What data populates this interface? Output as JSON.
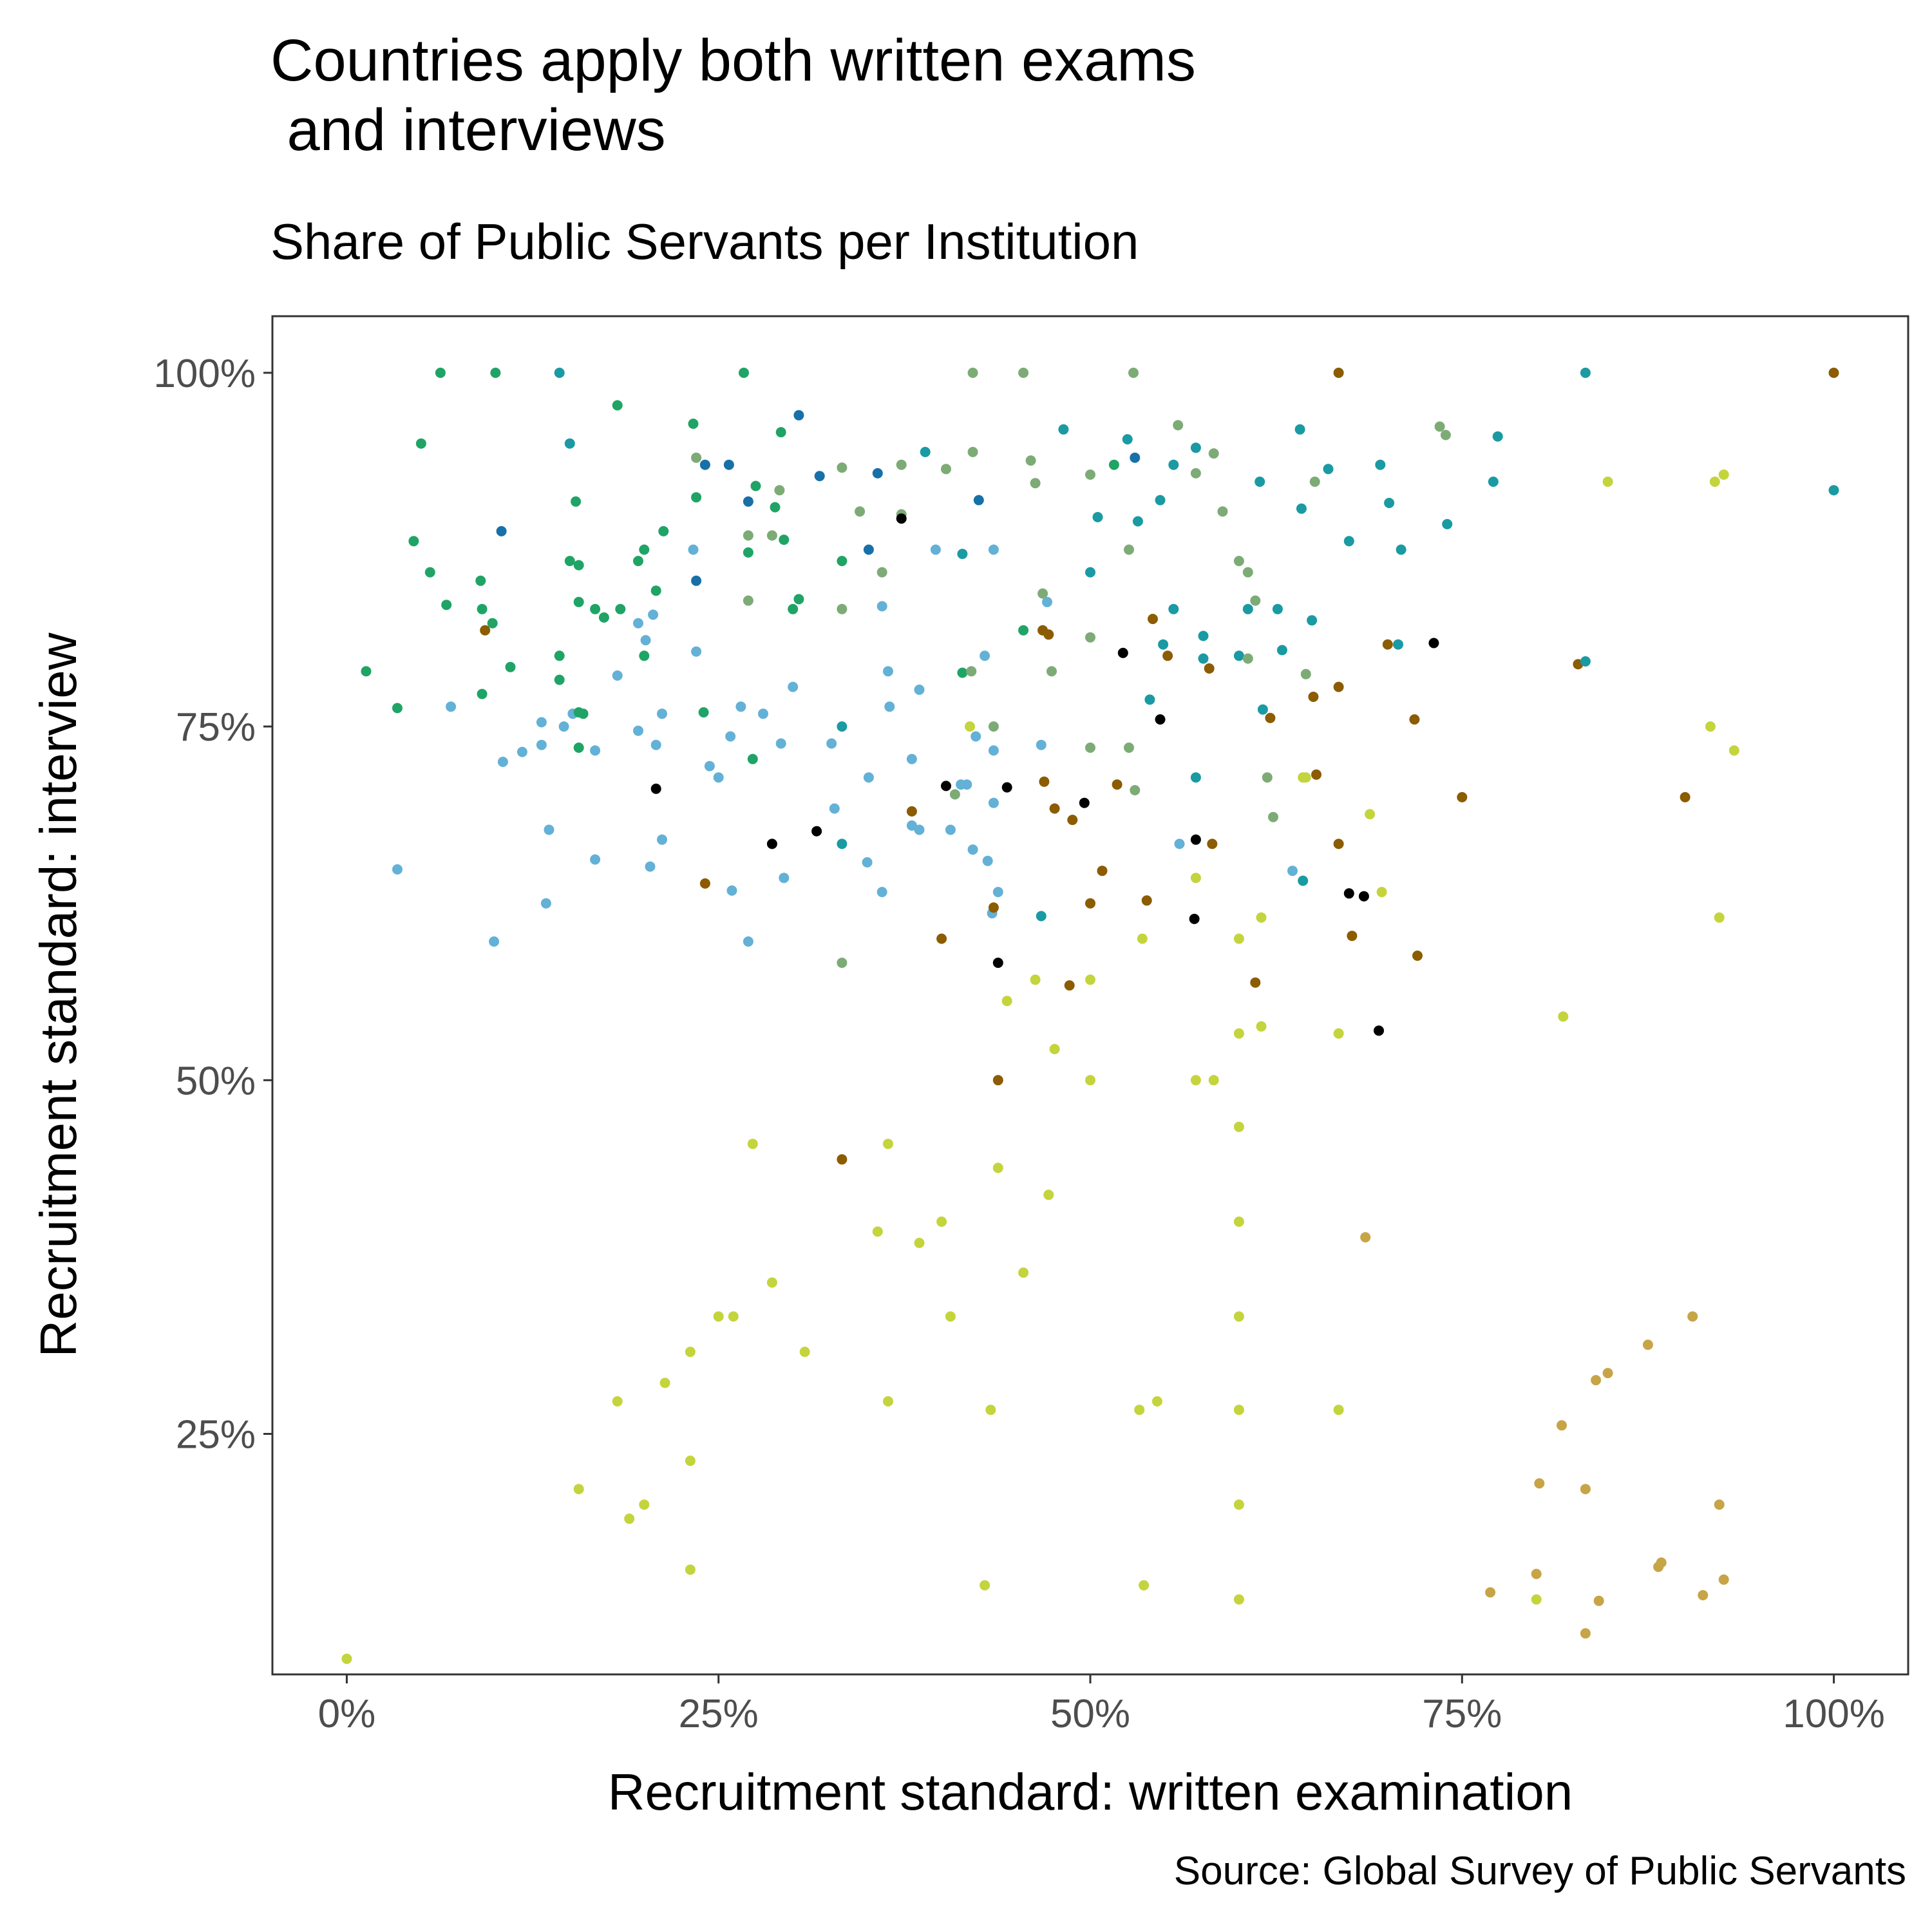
{
  "chart_data": {
    "type": "scatter",
    "title": "Countries apply both written exams\n and interviews",
    "subtitle": "Share of Public Servants per Institution",
    "xlabel": "Recruitment standard: written examination",
    "ylabel": "Recruitment standard: interview",
    "caption": "Source: Global Survey of Public Servants",
    "xlim": [
      -5,
      105
    ],
    "ylim": [
      8,
      104
    ],
    "x_ticks": [
      0,
      25,
      50,
      75,
      100
    ],
    "x_tick_labels": [
      "0%",
      "25%",
      "50%",
      "75%",
      "100%"
    ],
    "y_ticks": [
      25,
      50,
      75,
      100
    ],
    "y_tick_labels": [
      "25%",
      "50%",
      "75%",
      "100%"
    ],
    "grid": false,
    "legend": "none",
    "colors": [
      "#1fa466",
      "#63b1d6",
      "#1a9aa3",
      "#7dab76",
      "#8b5c00",
      "#000000",
      "#c4d43c",
      "#c7a446",
      "#1870a8"
    ],
    "points": [
      [
        6.3,
        100,
        0
      ],
      [
        10,
        100,
        0
      ],
      [
        14.3,
        100,
        2
      ],
      [
        26.7,
        100,
        0
      ],
      [
        42.1,
        100,
        3
      ],
      [
        45.5,
        100,
        3
      ],
      [
        52.9,
        100,
        3
      ],
      [
        66.7,
        100,
        4
      ],
      [
        83.3,
        100,
        2
      ],
      [
        100,
        100,
        4
      ],
      [
        18.2,
        97.7,
        0
      ],
      [
        30.4,
        97,
        8
      ],
      [
        5,
        95,
        0
      ],
      [
        15,
        95,
        2
      ],
      [
        23.3,
        96.4,
        0
      ],
      [
        29.2,
        95.8,
        0
      ],
      [
        48.2,
        96,
        2
      ],
      [
        52.5,
        95.3,
        2
      ],
      [
        55.9,
        96.3,
        3
      ],
      [
        57.1,
        94.7,
        2
      ],
      [
        64.1,
        96,
        2
      ],
      [
        73.5,
        96.2,
        3
      ],
      [
        73.9,
        95.6,
        3
      ],
      [
        77.4,
        95.5,
        2
      ],
      [
        23.5,
        94,
        3
      ],
      [
        24.1,
        93.5,
        8
      ],
      [
        25.7,
        93.5,
        8
      ],
      [
        31.8,
        92.7,
        8
      ],
      [
        33.3,
        93.3,
        3
      ],
      [
        35.7,
        92.9,
        8
      ],
      [
        37.3,
        93.5,
        3
      ],
      [
        38.9,
        94.4,
        2
      ],
      [
        40.3,
        93.2,
        3
      ],
      [
        42.1,
        94.4,
        3
      ],
      [
        46,
        93.8,
        3
      ],
      [
        46.3,
        92.2,
        3
      ],
      [
        50,
        92.8,
        3
      ],
      [
        51.6,
        93.5,
        0
      ],
      [
        53,
        94,
        8
      ],
      [
        55.6,
        93.5,
        2
      ],
      [
        57.1,
        92.9,
        3
      ],
      [
        58.3,
        94.3,
        3
      ],
      [
        61.4,
        92.3,
        2
      ],
      [
        65.1,
        92.3,
        3
      ],
      [
        66,
        93.2,
        2
      ],
      [
        69.5,
        93.5,
        2
      ],
      [
        77.1,
        92.3,
        2
      ],
      [
        84.8,
        92.3,
        6
      ],
      [
        92,
        92.3,
        6
      ],
      [
        92.6,
        92.8,
        6
      ],
      [
        100,
        91.7,
        2
      ],
      [
        15.4,
        90.9,
        0
      ],
      [
        23.5,
        91.2,
        0
      ],
      [
        27,
        90.9,
        8
      ],
      [
        27.5,
        92,
        0
      ],
      [
        29.1,
        91.7,
        3
      ],
      [
        28.8,
        90.5,
        0
      ],
      [
        34.5,
        90.2,
        3
      ],
      [
        37.3,
        90,
        3
      ],
      [
        42.5,
        91,
        8
      ],
      [
        50.5,
        89.8,
        2
      ],
      [
        53.2,
        89.5,
        2
      ],
      [
        54.7,
        91,
        2
      ],
      [
        58.9,
        90.2,
        3
      ],
      [
        64.2,
        90.4,
        2
      ],
      [
        70.1,
        90.8,
        2
      ],
      [
        74,
        89.3,
        2
      ],
      [
        4.5,
        88.1,
        0
      ],
      [
        10.4,
        88.8,
        8
      ],
      [
        21.3,
        88.8,
        0
      ],
      [
        27,
        88.5,
        3
      ],
      [
        28.6,
        88.5,
        3
      ],
      [
        29.4,
        88.2,
        0
      ],
      [
        37.3,
        89.7,
        5
      ],
      [
        5.6,
        85.9,
        0
      ],
      [
        9,
        85.3,
        0
      ],
      [
        15,
        86.7,
        0
      ],
      [
        15.6,
        86.4,
        0
      ],
      [
        19.6,
        86.7,
        0
      ],
      [
        20,
        87.5,
        0
      ],
      [
        23.3,
        87.5,
        1
      ],
      [
        27,
        87.3,
        0
      ],
      [
        33.3,
        86.7,
        0
      ],
      [
        35.1,
        87.5,
        8
      ],
      [
        36,
        85.9,
        3
      ],
      [
        39.6,
        87.5,
        1
      ],
      [
        41.4,
        87.2,
        2
      ],
      [
        43.5,
        87.5,
        1
      ],
      [
        50,
        85.9,
        2
      ],
      [
        52.6,
        87.5,
        3
      ],
      [
        60,
        86.7,
        3
      ],
      [
        60.6,
        85.9,
        3
      ],
      [
        67.4,
        88.1,
        2
      ],
      [
        70.9,
        87.5,
        2
      ],
      [
        6.7,
        83.6,
        0
      ],
      [
        9.1,
        83.3,
        0
      ],
      [
        9.8,
        82.3,
        0
      ],
      [
        9.3,
        81.8,
        4
      ],
      [
        15.6,
        83.8,
        0
      ],
      [
        16.7,
        83.3,
        0
      ],
      [
        17.3,
        82.7,
        0
      ],
      [
        18.4,
        83.3,
        0
      ],
      [
        19.6,
        82.3,
        1
      ],
      [
        20.1,
        81.1,
        1
      ],
      [
        20.6,
        82.9,
        1
      ],
      [
        20.8,
        84.6,
        0
      ],
      [
        23.5,
        85.3,
        8
      ],
      [
        27,
        83.9,
        3
      ],
      [
        30,
        83.3,
        0
      ],
      [
        30.4,
        84,
        0
      ],
      [
        33.3,
        83.3,
        3
      ],
      [
        36,
        83.5,
        1
      ],
      [
        45.5,
        81.8,
        0
      ],
      [
        46.8,
        84.4,
        3
      ],
      [
        46.8,
        81.8,
        4
      ],
      [
        47.1,
        83.8,
        1
      ],
      [
        47.2,
        81.5,
        4
      ],
      [
        50,
        81.3,
        3
      ],
      [
        54.2,
        82.6,
        4
      ],
      [
        55.6,
        83.3,
        2
      ],
      [
        60.6,
        83.3,
        2
      ],
      [
        61.1,
        83.9,
        3
      ],
      [
        62.6,
        83.3,
        2
      ],
      [
        64.9,
        82.5,
        2
      ],
      [
        1.3,
        78.9,
        0
      ],
      [
        9.1,
        77.3,
        0
      ],
      [
        11,
        79.2,
        0
      ],
      [
        14.3,
        80,
        0
      ],
      [
        14.3,
        78.3,
        0
      ],
      [
        18.2,
        78.6,
        1
      ],
      [
        20,
        80,
        0
      ],
      [
        23.5,
        80.3,
        1
      ],
      [
        30,
        77.8,
        1
      ],
      [
        36.4,
        78.9,
        1
      ],
      [
        38.5,
        77.6,
        1
      ],
      [
        41.4,
        78.8,
        0
      ],
      [
        42,
        78.9,
        3
      ],
      [
        42.9,
        80,
        1
      ],
      [
        47.4,
        78.9,
        3
      ],
      [
        52.2,
        80.2,
        5
      ],
      [
        54.9,
        80.8,
        2
      ],
      [
        55.2,
        80,
        4
      ],
      [
        57.6,
        79.8,
        2
      ],
      [
        57.6,
        81.4,
        2
      ],
      [
        58,
        79.1,
        4
      ],
      [
        60,
        80,
        2
      ],
      [
        60.6,
        79.8,
        3
      ],
      [
        62.9,
        80.4,
        2
      ],
      [
        64.5,
        78.7,
        3
      ],
      [
        66.7,
        77.8,
        4
      ],
      [
        70,
        80.8,
        4
      ],
      [
        70.7,
        80.8,
        2
      ],
      [
        73.1,
        80.9,
        5
      ],
      [
        82.8,
        79.4,
        4
      ],
      [
        83.3,
        79.6,
        2
      ],
      [
        3.4,
        76.3,
        0
      ],
      [
        7,
        76.4,
        1
      ],
      [
        13.1,
        75.3,
        1
      ],
      [
        13.1,
        73.7,
        1
      ],
      [
        14.6,
        75,
        1
      ],
      [
        15.2,
        75.9,
        1
      ],
      [
        15.6,
        76,
        0
      ],
      [
        15.9,
        75.9,
        0
      ],
      [
        15.6,
        73.5,
        0
      ],
      [
        16.7,
        73.3,
        1
      ],
      [
        19.6,
        74.7,
        1
      ],
      [
        20.8,
        73.7,
        1
      ],
      [
        21.2,
        75.9,
        1
      ],
      [
        24,
        76,
        0
      ],
      [
        24.4,
        72.2,
        1
      ],
      [
        25,
        71.4,
        1
      ],
      [
        25.8,
        74.3,
        1
      ],
      [
        26.5,
        76.4,
        1
      ],
      [
        27.3,
        72.7,
        0
      ],
      [
        28,
        75.9,
        1
      ],
      [
        29.2,
        73.8,
        1
      ],
      [
        32.6,
        73.8,
        1
      ],
      [
        33.3,
        75,
        2
      ],
      [
        35.1,
        71.4,
        1
      ],
      [
        36.5,
        76.4,
        1
      ],
      [
        38,
        72.7,
        1
      ],
      [
        40.9,
        70.2,
        3
      ],
      [
        41.3,
        70.9,
        1
      ],
      [
        41.7,
        70.9,
        1
      ],
      [
        41.9,
        75,
        6
      ],
      [
        42.3,
        74.3,
        1
      ],
      [
        43.5,
        73.3,
        1
      ],
      [
        43.5,
        75,
        3
      ],
      [
        44.4,
        70.7,
        5
      ],
      [
        46.7,
        73.7,
        1
      ],
      [
        46.9,
        71.1,
        4
      ],
      [
        50,
        73.5,
        3
      ],
      [
        51.8,
        70.9,
        4
      ],
      [
        52.6,
        73.5,
        3
      ],
      [
        53,
        70.5,
        3
      ],
      [
        54,
        76.9,
        2
      ],
      [
        54.7,
        75.5,
        5
      ],
      [
        57.1,
        71.4,
        2
      ],
      [
        61.6,
        76.2,
        2
      ],
      [
        62.1,
        75.6,
        4
      ],
      [
        61.9,
        71.4,
        3
      ],
      [
        64.5,
        71.4,
        6
      ],
      [
        65.2,
        71.6,
        4
      ],
      [
        65,
        77.1,
        4
      ],
      [
        71.8,
        75.5,
        4
      ],
      [
        75,
        70,
        4
      ],
      [
        90,
        70,
        4
      ],
      [
        91.7,
        75,
        6
      ],
      [
        93.3,
        73.3,
        6
      ],
      [
        3.4,
        64.9,
        1
      ],
      [
        9.9,
        59.8,
        1
      ],
      [
        10.5,
        72.5,
        1
      ],
      [
        11.8,
        73.2,
        1
      ],
      [
        13.6,
        67.7,
        1
      ],
      [
        13.4,
        62.5,
        1
      ],
      [
        16.7,
        65.6,
        1
      ],
      [
        20.4,
        65.1,
        1
      ],
      [
        20.8,
        70.6,
        5
      ],
      [
        21.2,
        67,
        1
      ],
      [
        24.1,
        63.9,
        4
      ],
      [
        25.9,
        63.4,
        1
      ],
      [
        27,
        59.8,
        1
      ],
      [
        28.6,
        66.7,
        5
      ],
      [
        29.4,
        64.3,
        1
      ],
      [
        31.6,
        67.6,
        5
      ],
      [
        32.8,
        69.2,
        1
      ],
      [
        33.3,
        66.7,
        2
      ],
      [
        33.3,
        58.3,
        3
      ],
      [
        35,
        65.4,
        1
      ],
      [
        36,
        63.3,
        1
      ],
      [
        38,
        68,
        1
      ],
      [
        38,
        69,
        4
      ],
      [
        38.5,
        67.7,
        1
      ],
      [
        40,
        60,
        4
      ],
      [
        40.3,
        70.8,
        5
      ],
      [
        40.6,
        67.7,
        1
      ],
      [
        42.1,
        66.3,
        1
      ],
      [
        43.1,
        65.5,
        1
      ],
      [
        43.4,
        61.8,
        1
      ],
      [
        43.5,
        62.2,
        4
      ],
      [
        43.5,
        69.6,
        1
      ],
      [
        43.8,
        63.3,
        1
      ],
      [
        43.8,
        58.3,
        5
      ],
      [
        46.7,
        61.6,
        2
      ],
      [
        47.6,
        69.2,
        4
      ],
      [
        48.6,
        56.7,
        4
      ],
      [
        48.8,
        68.4,
        4
      ],
      [
        49.6,
        69.6,
        5
      ],
      [
        50,
        62.5,
        4
      ],
      [
        50.8,
        64.8,
        4
      ],
      [
        53.8,
        62.7,
        4
      ],
      [
        56,
        66.7,
        1
      ],
      [
        57.1,
        67,
        5
      ],
      [
        57,
        61.4,
        5
      ],
      [
        58.2,
        66.7,
        4
      ],
      [
        62.3,
        68.6,
        3
      ],
      [
        63.6,
        64.8,
        1
      ],
      [
        64.3,
        64.1,
        2
      ],
      [
        66.7,
        66.7,
        4
      ],
      [
        67.4,
        63.2,
        5
      ],
      [
        67.6,
        60.2,
        4
      ],
      [
        68.4,
        63,
        5
      ],
      [
        69.6,
        63.3,
        6
      ],
      [
        72,
        58.8,
        4
      ],
      [
        61.1,
        56.9,
        4
      ],
      [
        69.4,
        53.5,
        5
      ],
      [
        92.3,
        61.5,
        6
      ],
      [
        27.3,
        45.5,
        6
      ],
      [
        33.3,
        44.4,
        4
      ],
      [
        36.4,
        45.5,
        6
      ],
      [
        43.8,
        50,
        4
      ],
      [
        43.8,
        43.8,
        6
      ],
      [
        44.4,
        55.6,
        6
      ],
      [
        46.3,
        57.1,
        6
      ],
      [
        47.6,
        52.2,
        6
      ],
      [
        47.2,
        41.9,
        6
      ],
      [
        50,
        50,
        6
      ],
      [
        50,
        57.1,
        6
      ],
      [
        53.5,
        60,
        6
      ],
      [
        57.1,
        64.3,
        6
      ],
      [
        57.1,
        50,
        6
      ],
      [
        58.3,
        50,
        6
      ],
      [
        60,
        60,
        6
      ],
      [
        60,
        53.3,
        6
      ],
      [
        60,
        46.7,
        6
      ],
      [
        60,
        40,
        6
      ],
      [
        61.5,
        61.5,
        6
      ],
      [
        61.5,
        53.8,
        6
      ],
      [
        64.3,
        71.4,
        6
      ],
      [
        66.7,
        53.3,
        6
      ],
      [
        68.8,
        68.8,
        6
      ],
      [
        81.8,
        54.5,
        6
      ],
      [
        0,
        9.1,
        6
      ],
      [
        15.6,
        21.1,
        6
      ],
      [
        18.2,
        27.3,
        6
      ],
      [
        19,
        19,
        6
      ],
      [
        20,
        20,
        6
      ],
      [
        21.4,
        28.6,
        6
      ],
      [
        23.1,
        30.8,
        6
      ],
      [
        23.1,
        23.1,
        6
      ],
      [
        23.1,
        15.4,
        6
      ],
      [
        25,
        33.3,
        6
      ],
      [
        26,
        33.3,
        6
      ],
      [
        28.6,
        35.7,
        6
      ],
      [
        30.8,
        30.8,
        6
      ],
      [
        35.7,
        39.3,
        6
      ],
      [
        36.4,
        27.3,
        6
      ],
      [
        38.5,
        38.5,
        6
      ],
      [
        40,
        40,
        6
      ],
      [
        40.6,
        33.3,
        6
      ],
      [
        42.9,
        14.3,
        6
      ],
      [
        43.3,
        26.7,
        6
      ],
      [
        45.5,
        36.4,
        6
      ],
      [
        53.3,
        26.7,
        6
      ],
      [
        53.6,
        14.3,
        6
      ],
      [
        54.5,
        27.3,
        6
      ],
      [
        60,
        33.3,
        6
      ],
      [
        60,
        26.7,
        6
      ],
      [
        60,
        20,
        6
      ],
      [
        60,
        13.3,
        6
      ],
      [
        66.7,
        26.7,
        6
      ],
      [
        68.5,
        38.9,
        7
      ],
      [
        76.9,
        13.8,
        7
      ],
      [
        80,
        15.1,
        7
      ],
      [
        80,
        13.3,
        6
      ],
      [
        80.2,
        21.5,
        7
      ],
      [
        81.7,
        25.6,
        7
      ],
      [
        83.3,
        21.1,
        7
      ],
      [
        83.3,
        10.9,
        7
      ],
      [
        84,
        28.8,
        7
      ],
      [
        84.2,
        13.2,
        7
      ],
      [
        84.8,
        29.3,
        7
      ],
      [
        87.5,
        31.3,
        7
      ],
      [
        88.2,
        15.6,
        7
      ],
      [
        88.4,
        15.9,
        7
      ],
      [
        90.5,
        33.3,
        7
      ],
      [
        91.2,
        13.6,
        7
      ],
      [
        92.3,
        20,
        7
      ],
      [
        92.6,
        14.7,
        7
      ]
    ]
  }
}
